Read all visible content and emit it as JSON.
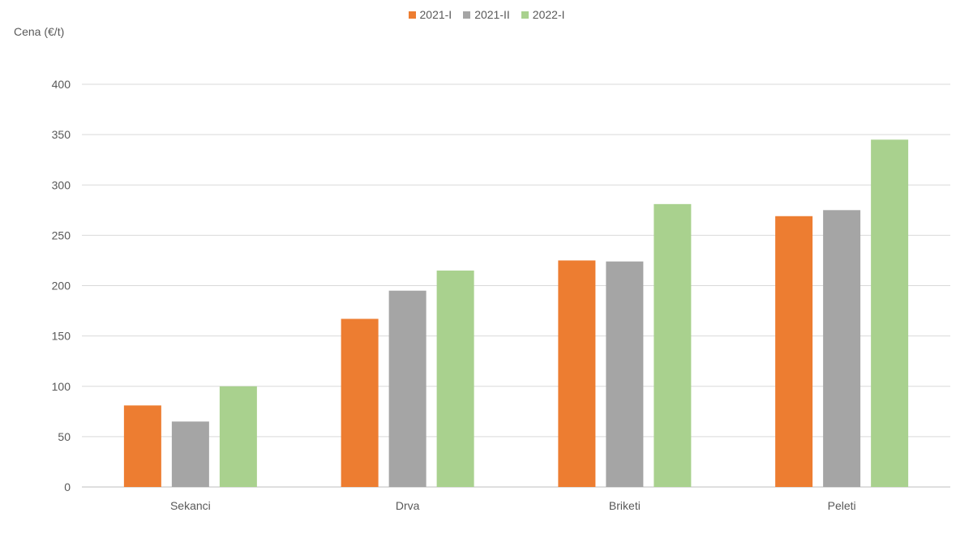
{
  "chart_data": {
    "type": "bar",
    "title": "",
    "xlabel": "",
    "ylabel": "Cena (€/t)",
    "categories": [
      "Sekanci",
      "Drva",
      "Briketi",
      "Peleti"
    ],
    "series": [
      {
        "name": "2021-I",
        "color": "#ED7D31",
        "values": [
          81,
          167,
          225,
          269
        ]
      },
      {
        "name": "2021-II",
        "color": "#A5A5A5",
        "values": [
          65,
          195,
          224,
          275
        ]
      },
      {
        "name": "2022-I",
        "color": "#A9D18E",
        "values": [
          100,
          215,
          281,
          345
        ]
      }
    ],
    "ylim": [
      0,
      400
    ],
    "yticks": [
      0,
      50,
      100,
      150,
      200,
      250,
      300,
      350,
      400
    ],
    "grid": true,
    "legend_position": "top-center"
  }
}
